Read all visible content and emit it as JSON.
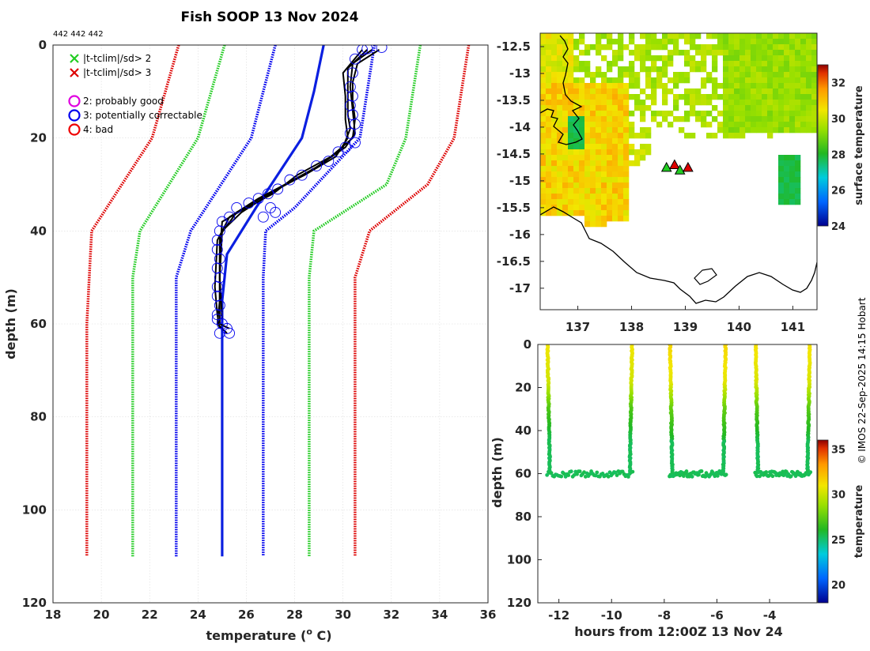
{
  "header": {
    "title": "Fish SOOP 13 Nov 2024",
    "id_label": "442 442 442",
    "credit": "© IMOS 22-Sep-2025 14:15 Hobart"
  },
  "colors": {
    "qc2": "#e000e0",
    "qc3": "#0000ee",
    "qc4": "#ee0000",
    "sd2": "#22cc22",
    "sd3": "#dd0000",
    "profile": "#000000",
    "mean": "#0b1fe0"
  },
  "legend": [
    {
      "symbol": "x",
      "color": "#22cc22",
      "label": "|t-tclim|/sd> 2"
    },
    {
      "symbol": "x",
      "color": "#dd0000",
      "label": "|t-tclim|/sd> 3"
    },
    {
      "symbol": "o",
      "color": "#e000e0",
      "label": "2: probably good"
    },
    {
      "symbol": "o",
      "color": "#0000ee",
      "label": "3: potentially correctable"
    },
    {
      "symbol": "o",
      "color": "#ee0000",
      "label": "4: bad"
    }
  ],
  "chart_data": [
    {
      "type": "line",
      "name": "profile",
      "xlabel": "temperature (",
      "xlabel_sup": "o",
      "xlabel_end": " C)",
      "ylabel": "depth (m)",
      "xlim": [
        18,
        36
      ],
      "ylim": [
        0,
        120
      ],
      "y_reversed": true,
      "xticks": [
        18,
        20,
        22,
        24,
        26,
        28,
        30,
        32,
        34,
        36
      ],
      "yticks": [
        0,
        20,
        40,
        60,
        80,
        100,
        120
      ],
      "climatology": [
        {
          "name": "mean - 3sd",
          "color": "#dd0000",
          "points": [
            [
              23.2,
              0
            ],
            [
              22.1,
              20
            ],
            [
              19.6,
              40
            ],
            [
              19.4,
              60
            ],
            [
              19.4,
              80
            ],
            [
              19.4,
              100
            ],
            [
              19.4,
              110
            ]
          ]
        },
        {
          "name": "mean - 2sd",
          "color": "#22cc22",
          "points": [
            [
              25.1,
              0
            ],
            [
              24.0,
              20
            ],
            [
              21.6,
              40
            ],
            [
              21.3,
              50
            ],
            [
              21.3,
              80
            ],
            [
              21.3,
              110
            ]
          ]
        },
        {
          "name": "mean - 1sd",
          "color": "#0000ee",
          "points": [
            [
              27.2,
              0
            ],
            [
              26.2,
              20
            ],
            [
              23.7,
              40
            ],
            [
              23.1,
              50
            ],
            [
              23.1,
              80
            ],
            [
              23.1,
              110
            ]
          ]
        },
        {
          "name": "mean + 1sd",
          "color": "#0000ee",
          "points": [
            [
              31.3,
              0
            ],
            [
              30.7,
              20
            ],
            [
              28.0,
              35
            ],
            [
              26.8,
              40
            ],
            [
              26.7,
              50
            ],
            [
              26.7,
              80
            ],
            [
              26.7,
              110
            ]
          ]
        },
        {
          "name": "mean + 2sd",
          "color": "#22cc22",
          "points": [
            [
              33.2,
              0
            ],
            [
              32.6,
              20
            ],
            [
              31.8,
              30
            ],
            [
              28.8,
              40
            ],
            [
              28.6,
              50
            ],
            [
              28.6,
              80
            ],
            [
              28.6,
              110
            ]
          ]
        },
        {
          "name": "mean + 3sd",
          "color": "#dd0000",
          "points": [
            [
              35.2,
              0
            ],
            [
              34.6,
              20
            ],
            [
              33.5,
              30
            ],
            [
              31.1,
              40
            ],
            [
              30.5,
              50
            ],
            [
              30.5,
              80
            ],
            [
              30.5,
              110
            ]
          ]
        }
      ],
      "mean_profile": [
        [
          29.2,
          0
        ],
        [
          28.8,
          10
        ],
        [
          28.3,
          20
        ],
        [
          26.4,
          35
        ],
        [
          25.2,
          45
        ],
        [
          25.0,
          55
        ],
        [
          25.0,
          60
        ],
        [
          25.0,
          110
        ]
      ],
      "profiles": [
        [
          [
            31.5,
            1
          ],
          [
            30.6,
            4
          ],
          [
            30.4,
            8
          ],
          [
            30.4,
            12
          ],
          [
            30.5,
            16
          ],
          [
            30.4,
            20
          ],
          [
            29.5,
            24
          ],
          [
            28.1,
            28
          ],
          [
            27.1,
            32
          ],
          [
            26.0,
            35
          ],
          [
            25.0,
            38
          ],
          [
            24.9,
            45
          ],
          [
            24.9,
            55
          ],
          [
            24.8,
            60
          ],
          [
            25.2,
            62
          ]
        ],
        [
          [
            31.0,
            1
          ],
          [
            30.2,
            5
          ],
          [
            30.2,
            10
          ],
          [
            30.2,
            15
          ],
          [
            30.3,
            18
          ],
          [
            30.0,
            22
          ],
          [
            29.0,
            26
          ],
          [
            27.6,
            30
          ],
          [
            26.5,
            33
          ],
          [
            25.3,
            37
          ],
          [
            24.8,
            42
          ],
          [
            24.7,
            52
          ],
          [
            24.8,
            58
          ],
          [
            24.9,
            61
          ]
        ],
        [
          [
            31.2,
            1
          ],
          [
            30.4,
            4
          ],
          [
            30.3,
            9
          ],
          [
            30.4,
            14
          ],
          [
            30.5,
            19
          ],
          [
            30.1,
            22
          ],
          [
            28.7,
            27
          ],
          [
            27.3,
            31
          ],
          [
            25.8,
            36
          ],
          [
            25.0,
            40
          ],
          [
            24.9,
            50
          ],
          [
            24.9,
            60
          ],
          [
            25.3,
            61
          ]
        ],
        [
          [
            30.8,
            1
          ],
          [
            30.0,
            6
          ],
          [
            30.1,
            11
          ],
          [
            30.1,
            16
          ],
          [
            30.2,
            20
          ],
          [
            29.7,
            24
          ],
          [
            28.4,
            28
          ],
          [
            26.9,
            32
          ],
          [
            25.6,
            36
          ],
          [
            24.9,
            41
          ],
          [
            24.9,
            50
          ],
          [
            25.0,
            59
          ]
        ]
      ],
      "flag3_points": [
        [
          31.6,
          0.5
        ],
        [
          31.0,
          0.8
        ],
        [
          30.8,
          1
        ],
        [
          30.5,
          3
        ],
        [
          30.4,
          6
        ],
        [
          30.3,
          9
        ],
        [
          30.4,
          11
        ],
        [
          30.3,
          13
        ],
        [
          30.4,
          15
        ],
        [
          30.5,
          17
        ],
        [
          30.3,
          19
        ],
        [
          30.5,
          21
        ],
        [
          30.1,
          22
        ],
        [
          29.8,
          23
        ],
        [
          29.4,
          25
        ],
        [
          28.9,
          26
        ],
        [
          28.3,
          28
        ],
        [
          27.8,
          29
        ],
        [
          27.3,
          31
        ],
        [
          26.9,
          32
        ],
        [
          26.5,
          33
        ],
        [
          26.1,
          34
        ],
        [
          25.6,
          35
        ],
        [
          25.3,
          37
        ],
        [
          25.0,
          38
        ],
        [
          24.9,
          40
        ],
        [
          24.8,
          42
        ],
        [
          24.8,
          44
        ],
        [
          24.9,
          46
        ],
        [
          24.8,
          48
        ],
        [
          24.9,
          50
        ],
        [
          24.8,
          52
        ],
        [
          24.8,
          54
        ],
        [
          24.9,
          56
        ],
        [
          24.8,
          58
        ],
        [
          24.8,
          59
        ],
        [
          25.0,
          60
        ],
        [
          25.2,
          61
        ],
        [
          24.9,
          62
        ],
        [
          25.3,
          62
        ]
      ],
      "flag3_mean_points": [
        [
          27.2,
          36
        ],
        [
          27.0,
          35
        ],
        [
          26.7,
          37
        ]
      ]
    },
    {
      "type": "heatmap",
      "name": "surface_map",
      "colorbar_label": "surface temperature",
      "xlim": [
        136.3,
        141.45
      ],
      "ylim": [
        -17.4,
        -12.25
      ],
      "xticks": [
        137,
        138,
        139,
        140,
        141
      ],
      "yticks": [
        -12.5,
        -13,
        -13.5,
        -14,
        -14.5,
        -15,
        -15.5,
        -16,
        -16.5,
        -17
      ],
      "colorbar_range": [
        24,
        33
      ],
      "colorbar_ticks": [
        24,
        26,
        28,
        30,
        32
      ],
      "stations": [
        [
          138.65,
          -14.75
        ],
        [
          138.8,
          -14.7
        ],
        [
          138.9,
          -14.8
        ],
        [
          139.05,
          -14.75
        ]
      ],
      "station_flag_colors": [
        "#22cc22",
        "#dd0000"
      ]
    },
    {
      "type": "scatter",
      "name": "section",
      "xlabel": "hours from 12:00Z 13 Nov 24",
      "ylabel": "depth (m)",
      "colorbar_label": "temperature",
      "xlim": [
        -12.8,
        -2.2
      ],
      "ylim": [
        0,
        120
      ],
      "y_reversed": true,
      "xticks": [
        -12,
        -10,
        -8,
        -6,
        -4
      ],
      "yticks": [
        0,
        20,
        40,
        60,
        80,
        100,
        120
      ],
      "colorbar_range": [
        18,
        36
      ],
      "colorbar_ticks": [
        20,
        25,
        30,
        35
      ],
      "casts": [
        {
          "down_x": -12.45,
          "up_x": -9.2,
          "surface_temp": 31.0,
          "bottom_depth": 60
        },
        {
          "down_x": -7.8,
          "up_x": -5.65,
          "surface_temp": 31.5,
          "bottom_depth": 60
        },
        {
          "down_x": -4.55,
          "up_x": -2.45,
          "surface_temp": 31.2,
          "bottom_depth": 60
        }
      ]
    }
  ]
}
